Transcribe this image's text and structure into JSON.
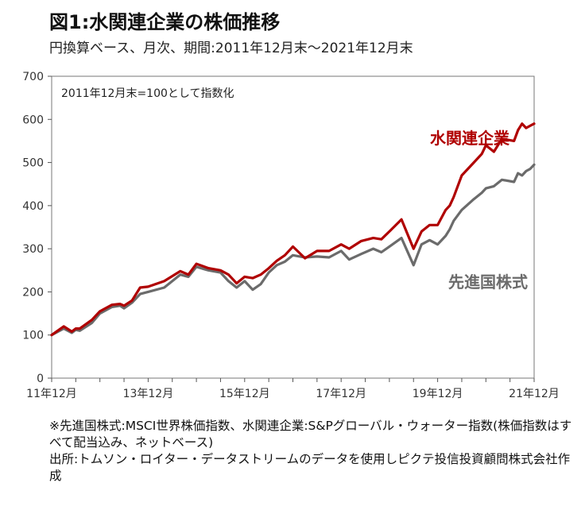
{
  "title": "図1:水関連企業の株価推移",
  "subtitle": "円換算ベース、月次、期間:2011年12月末〜2021年12月末",
  "chart_data": {
    "type": "line",
    "note": "2011年12月末=100として指数化",
    "ylim": [
      0,
      700
    ],
    "yticks": [
      0,
      100,
      200,
      300,
      400,
      500,
      600,
      700
    ],
    "xlim": [
      2011.917,
      2021.917
    ],
    "xticks": [
      {
        "label": "11年12月",
        "x": 2011.917
      },
      {
        "label": "13年12月",
        "x": 2013.917
      },
      {
        "label": "15年12月",
        "x": 2015.917
      },
      {
        "label": "17年12月",
        "x": 2017.917
      },
      {
        "label": "19年12月",
        "x": 2019.917
      },
      {
        "label": "21年12月",
        "x": 2021.917
      }
    ],
    "x": [
      2011.917,
      2012.167,
      2012.333,
      2012.417,
      2012.5,
      2012.75,
      2012.917,
      2013.167,
      2013.333,
      2013.417,
      2013.583,
      2013.75,
      2013.917,
      2014.25,
      2014.583,
      2014.75,
      2014.917,
      2015.167,
      2015.417,
      2015.583,
      2015.75,
      2015.917,
      2016.083,
      2016.25,
      2016.417,
      2016.583,
      2016.75,
      2016.917,
      2017.167,
      2017.417,
      2017.667,
      2017.917,
      2018.083,
      2018.333,
      2018.583,
      2018.75,
      2018.917,
      2019.167,
      2019.417,
      2019.583,
      2019.75,
      2019.917,
      2020.083,
      2020.167,
      2020.25,
      2020.417,
      2020.667,
      2020.833,
      2020.917,
      2021.083,
      2021.25,
      2021.5,
      2021.583,
      2021.667,
      2021.75,
      2021.833,
      2021.917
    ],
    "series": [
      {
        "name": "水関連企業",
        "color": "#b00000",
        "values": [
          100,
          120,
          108,
          115,
          115,
          135,
          155,
          170,
          172,
          168,
          180,
          210,
          212,
          225,
          248,
          240,
          265,
          255,
          250,
          240,
          220,
          235,
          232,
          240,
          255,
          272,
          285,
          305,
          278,
          295,
          295,
          310,
          300,
          318,
          325,
          322,
          340,
          368,
          300,
          340,
          355,
          355,
          390,
          400,
          420,
          470,
          500,
          520,
          540,
          525,
          555,
          550,
          575,
          590,
          580,
          585,
          590
        ]
      },
      {
        "name": "先進国株式",
        "color": "#6b6b6b",
        "values": [
          100,
          115,
          105,
          112,
          110,
          128,
          150,
          165,
          168,
          162,
          175,
          195,
          200,
          210,
          240,
          235,
          258,
          250,
          245,
          225,
          210,
          225,
          205,
          218,
          245,
          262,
          270,
          285,
          280,
          282,
          280,
          295,
          275,
          288,
          300,
          292,
          305,
          325,
          262,
          310,
          320,
          310,
          330,
          345,
          365,
          390,
          415,
          430,
          440,
          445,
          460,
          455,
          475,
          470,
          480,
          485,
          495
        ]
      }
    ]
  },
  "footnotes": [
    "※先進国株式:MSCI世界株価指数、水関連企業:S&Pグローバル・ウォーター指数(株価指数はすべて配当込み、ネットベース)",
    "出所:トムソン・ロイター・データストリームのデータを使用しピクテ投信投資顧問株式会社作成"
  ]
}
